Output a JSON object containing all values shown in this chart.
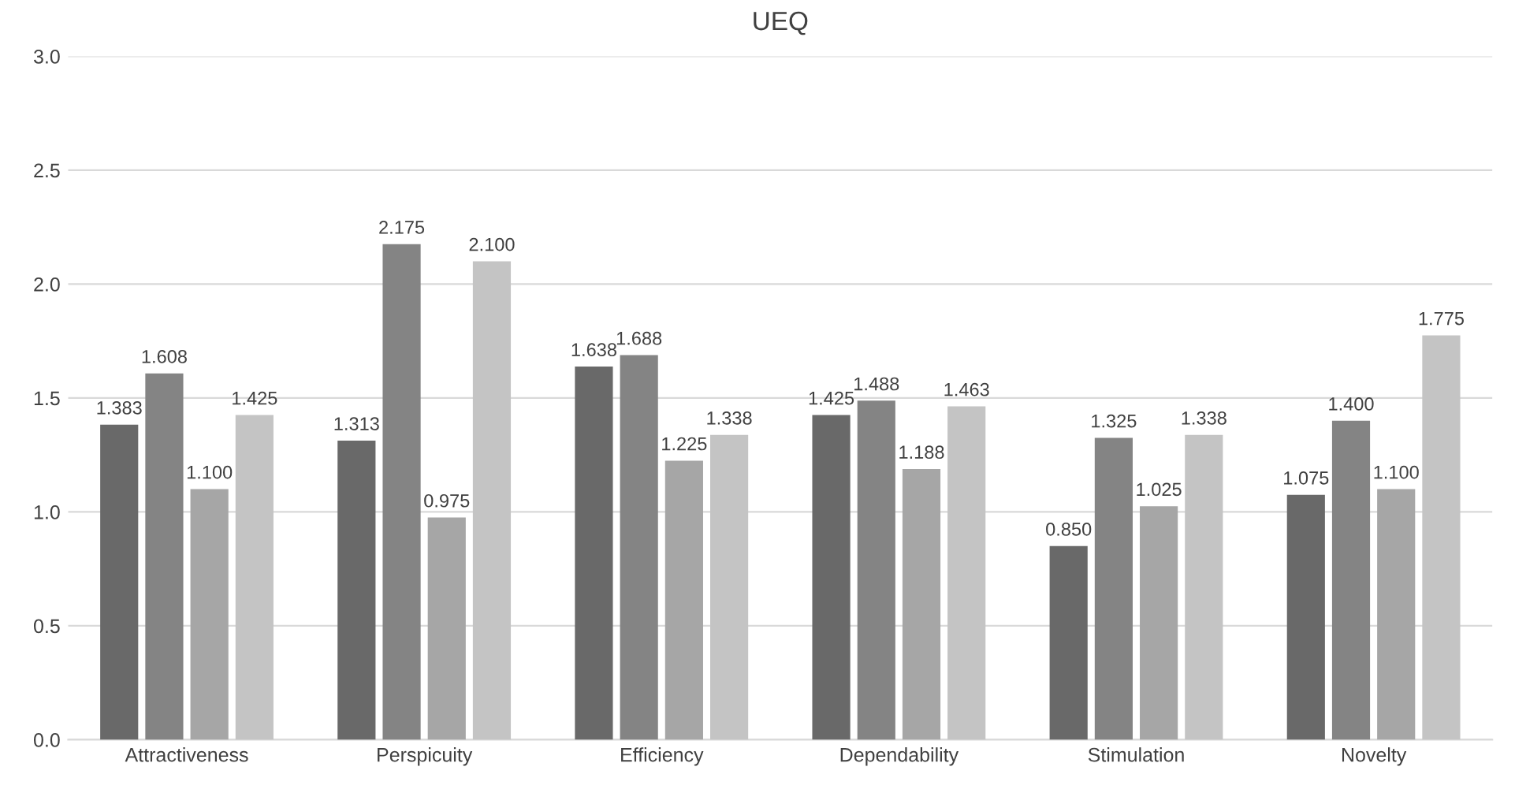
{
  "chart_data": {
    "type": "bar",
    "title": "UEQ",
    "categories": [
      "Attractiveness",
      "Perspicuity",
      "Efficiency",
      "Dependability",
      "Stimulation",
      "Novelty"
    ],
    "series": [
      {
        "color": "#696969",
        "values": [
          1.383,
          1.313,
          1.638,
          1.425,
          0.85,
          1.075
        ],
        "value_labels": [
          "1.383",
          "1.313",
          "1.638",
          "1.425",
          "0.850",
          "1.075"
        ]
      },
      {
        "color": "#848484",
        "values": [
          1.608,
          2.175,
          1.688,
          1.488,
          1.325,
          1.4
        ],
        "value_labels": [
          "1.608",
          "2.175",
          "1.688",
          "1.488",
          "1.325",
          "1.400"
        ]
      },
      {
        "color": "#a6a6a6",
        "values": [
          1.1,
          0.975,
          1.225,
          1.188,
          1.025,
          1.1
        ],
        "value_labels": [
          "1.100",
          "0.975",
          "1.225",
          "1.188",
          "1.025",
          "1.100"
        ]
      },
      {
        "color": "#c4c4c4",
        "values": [
          1.425,
          2.1,
          1.338,
          1.463,
          1.338,
          1.775
        ],
        "value_labels": [
          "1.425",
          "2.100",
          "1.338",
          "1.463",
          "1.338",
          "1.775"
        ]
      }
    ],
    "ylim": [
      0,
      3
    ],
    "yticks": [
      {
        "value": 0,
        "label": "0.0"
      },
      {
        "value": 0.5,
        "label": "0.5"
      },
      {
        "value": 1,
        "label": "1.0"
      },
      {
        "value": 1.5,
        "label": "1.5"
      },
      {
        "value": 2,
        "label": "2.0"
      },
      {
        "value": 2.5,
        "label": "2.5"
      },
      {
        "value": 3,
        "label": "3.0"
      }
    ],
    "grid": "y"
  }
}
